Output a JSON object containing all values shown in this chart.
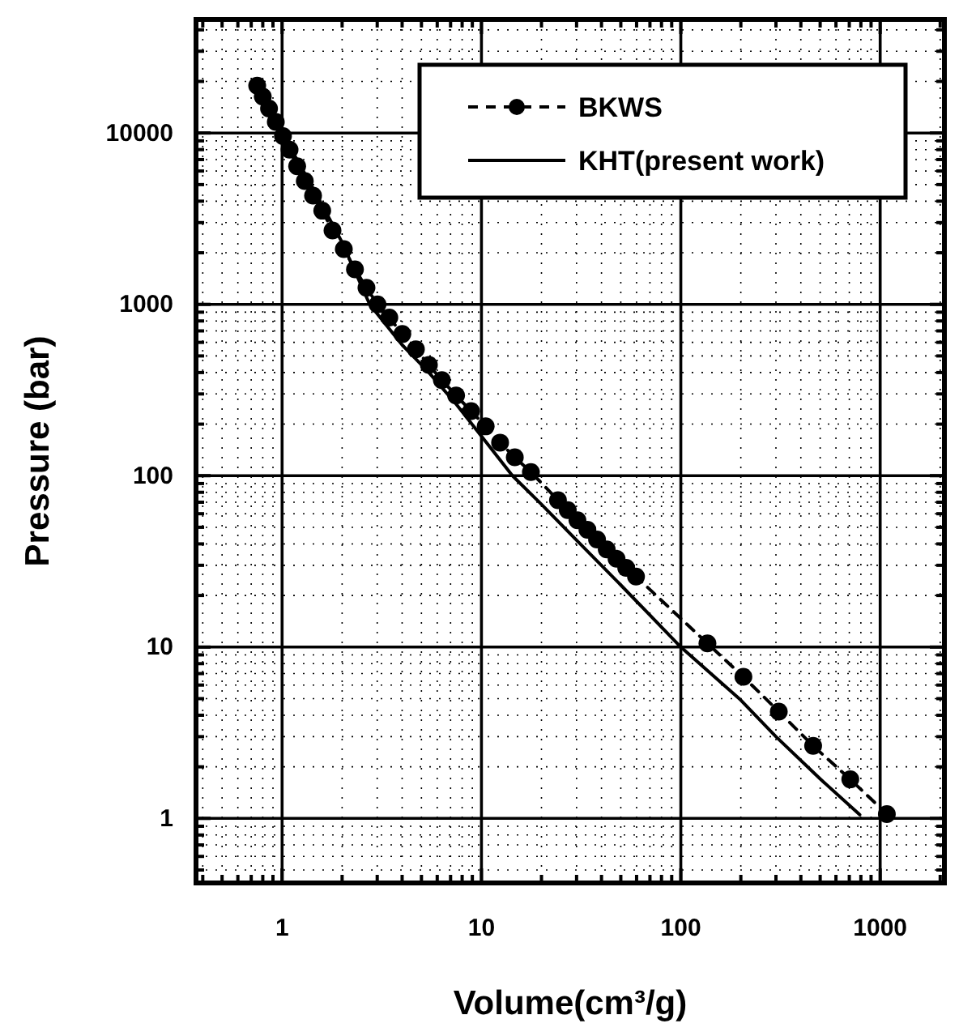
{
  "chart_data": {
    "type": "line",
    "xlabel": "Volume(cm³/g)",
    "ylabel": "Pressure (bar)",
    "log": "xy",
    "grid": true,
    "legend": "top right",
    "xlim": [
      0.37,
      2100
    ],
    "ylim": [
      0.42,
      46000
    ],
    "xticks": [
      {
        "value": 0.4,
        "label": null
      },
      {
        "value": 0.5,
        "label": null
      },
      {
        "value": 0.6,
        "label": null
      },
      {
        "value": 0.7,
        "label": null
      },
      {
        "value": 0.8,
        "label": null
      },
      {
        "value": 0.9,
        "label": null
      },
      1,
      {
        "value": 2,
        "label": null
      },
      {
        "value": 3,
        "label": null
      },
      {
        "value": 4,
        "label": null
      },
      {
        "value": 5,
        "label": null
      },
      {
        "value": 6,
        "label": null
      },
      {
        "value": 7,
        "label": null
      },
      {
        "value": 8,
        "label": null
      },
      {
        "value": 9,
        "label": null
      },
      10,
      {
        "value": 20,
        "label": null
      },
      {
        "value": 30,
        "label": null
      },
      {
        "value": 40,
        "label": null
      },
      {
        "value": 50,
        "label": null
      },
      {
        "value": 60,
        "label": null
      },
      {
        "value": 70,
        "label": null
      },
      {
        "value": 80,
        "label": null
      },
      {
        "value": 90,
        "label": null
      },
      100,
      {
        "value": 200,
        "label": null
      },
      {
        "value": 300,
        "label": null
      },
      {
        "value": 400,
        "label": null
      },
      {
        "value": 500,
        "label": null
      },
      {
        "value": 600,
        "label": null
      },
      {
        "value": 700,
        "label": null
      },
      {
        "value": 800,
        "label": null
      },
      {
        "value": 900,
        "label": null
      },
      1000,
      {
        "value": 2000,
        "label": null
      }
    ],
    "yticks": [
      {
        "value": 0.5,
        "label": null
      },
      {
        "value": 0.6,
        "label": null
      },
      {
        "value": 0.7,
        "label": null
      },
      {
        "value": 0.8,
        "label": null
      },
      {
        "value": 0.9,
        "label": null
      },
      1,
      {
        "value": 2,
        "label": null
      },
      {
        "value": 3,
        "label": null
      },
      {
        "value": 4,
        "label": null
      },
      {
        "value": 5,
        "label": null
      },
      {
        "value": 6,
        "label": null
      },
      {
        "value": 7,
        "label": null
      },
      {
        "value": 8,
        "label": null
      },
      {
        "value": 9,
        "label": null
      },
      10,
      {
        "value": 20,
        "label": null
      },
      {
        "value": 30,
        "label": null
      },
      {
        "value": 40,
        "label": null
      },
      {
        "value": 50,
        "label": null
      },
      {
        "value": 60,
        "label": null
      },
      {
        "value": 70,
        "label": null
      },
      {
        "value": 80,
        "label": null
      },
      {
        "value": 90,
        "label": null
      },
      100,
      {
        "value": 200,
        "label": null
      },
      {
        "value": 300,
        "label": null
      },
      {
        "value": 400,
        "label": null
      },
      {
        "value": 500,
        "label": null
      },
      {
        "value": 600,
        "label": null
      },
      {
        "value": 700,
        "label": null
      },
      {
        "value": 800,
        "label": null
      },
      {
        "value": 900,
        "label": null
      },
      1000,
      {
        "value": 2000,
        "label": null
      },
      {
        "value": 3000,
        "label": null
      },
      {
        "value": 4000,
        "label": null
      },
      {
        "value": 5000,
        "label": null
      },
      {
        "value": 6000,
        "label": null
      },
      {
        "value": 7000,
        "label": null
      },
      {
        "value": 8000,
        "label": null
      },
      {
        "value": 9000,
        "label": null
      },
      10000,
      {
        "value": 20000,
        "label": null
      },
      {
        "value": 30000,
        "label": null
      },
      {
        "value": 40000,
        "label": null
      }
    ],
    "series": [
      {
        "name": "BKWS",
        "color": "#000000",
        "marker": "circle",
        "line_style": "dashed",
        "x": [
          0.75,
          0.8,
          0.86,
          0.93,
          1.01,
          1.09,
          1.19,
          1.3,
          1.43,
          1.59,
          1.79,
          2.04,
          2.32,
          2.65,
          3.01,
          3.45,
          4.01,
          4.69,
          5.45,
          6.33,
          7.46,
          8.87,
          10.5,
          12.4,
          14.7,
          17.7,
          24.2,
          27.1,
          30.3,
          34,
          38,
          42.5,
          47.6,
          53.2,
          59.6,
          136,
          206,
          310,
          461,
          708,
          1080
        ],
        "values": [
          18900,
          16300,
          13900,
          11600,
          9600,
          8000,
          6400,
          5240,
          4310,
          3520,
          2700,
          2100,
          1600,
          1250,
          1000,
          838,
          671,
          547,
          443,
          361,
          294,
          238,
          194,
          156,
          128,
          105,
          72,
          63,
          55,
          48.4,
          42.4,
          37.1,
          32.8,
          29,
          25.8,
          10.5,
          6.7,
          4.2,
          2.65,
          1.69,
          1.06
        ]
      },
      {
        "name": "KHT(present work)",
        "color": "#000000",
        "marker": "none",
        "line_style": "solid",
        "x": [
          0.77,
          1,
          1.5,
          2,
          2.75,
          4,
          5.45,
          7.5,
          10,
          14.3,
          20,
          30,
          50,
          100,
          200,
          300,
          500,
          790
        ],
        "values": [
          18000,
          10000,
          4300,
          2300,
          1000,
          580,
          400,
          260,
          170,
          100,
          68,
          42,
          23,
          10,
          4.9,
          3,
          1.7,
          1.05
        ]
      }
    ]
  }
}
